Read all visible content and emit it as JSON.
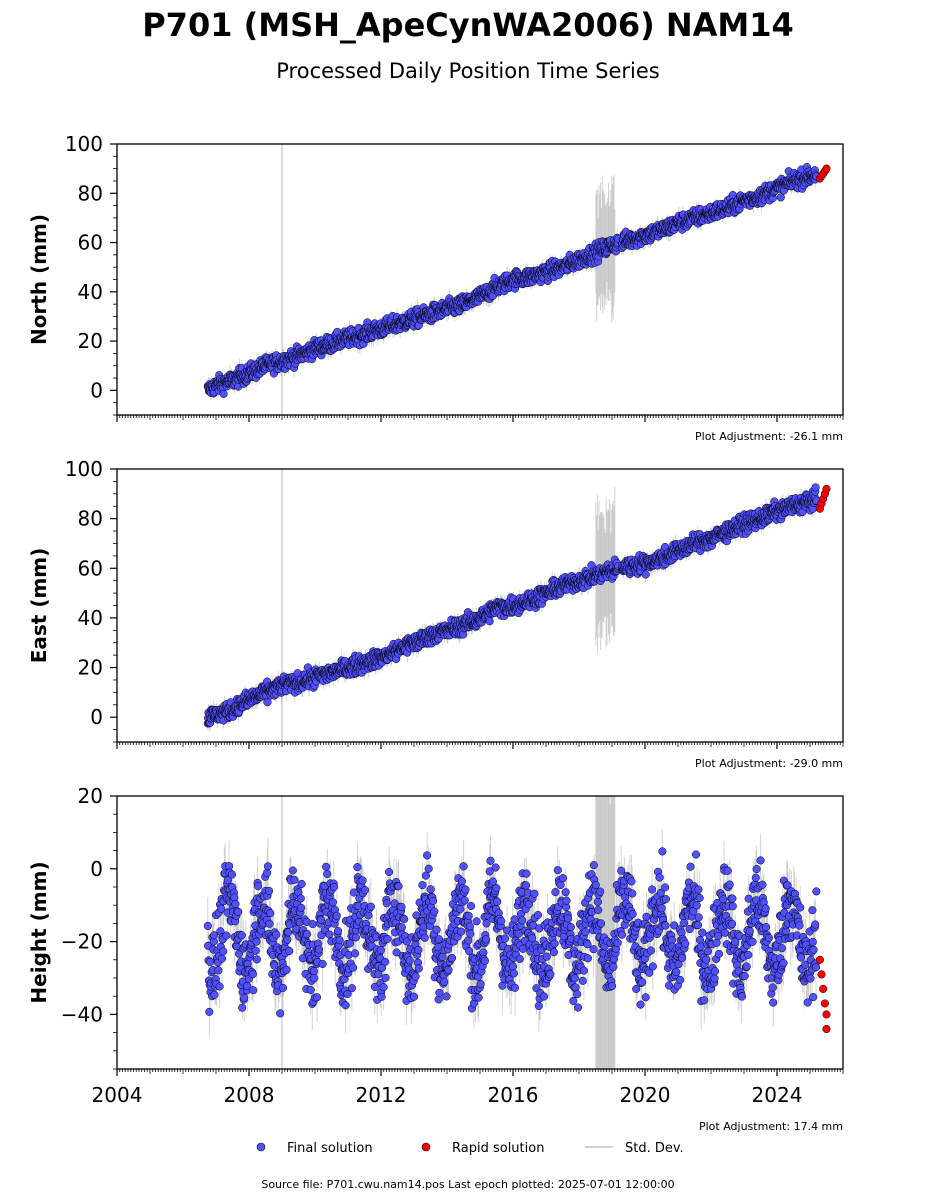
{
  "title": "P701 (MSH_ApeCynWA2006) NAM14",
  "subtitle": "Processed Daily Position Time Series",
  "footer": "Source file: P701.cwu.nam14.pos  Last epoch plotted: 2025-07-01 12:00:00",
  "legend": {
    "final": "Final solution",
    "rapid": "Rapid solution",
    "std": "Std. Dev."
  },
  "colors": {
    "final": "#5050ff",
    "rapid": "#ff0000",
    "std": "#808080",
    "marker_edge": "#000000",
    "vline": "#d0d0d0"
  },
  "chart_data": [
    {
      "type": "scatter",
      "ylabel": "North (mm)",
      "ylim": [
        -10,
        100
      ],
      "yticks": [
        0,
        20,
        40,
        60,
        80,
        100
      ],
      "xlim": [
        2004,
        2026
      ],
      "xticks": [
        2004,
        2008,
        2012,
        2016,
        2020,
        2024
      ],
      "x_tick_labels_shown": false,
      "adjustment": "Plot Adjustment: -26.1 mm",
      "vertical_line_x": 2009.0,
      "series": [
        {
          "name": "Final solution",
          "x": [
            2006.75,
            2007.0,
            2007.5,
            2008.0,
            2008.5,
            2009.0,
            2009.5,
            2010.0,
            2010.5,
            2011.0,
            2011.5,
            2012.0,
            2012.5,
            2013.0,
            2013.5,
            2014.0,
            2014.5,
            2015.0,
            2015.5,
            2016.0,
            2016.5,
            2017.0,
            2017.5,
            2018.0,
            2018.5,
            2019.0,
            2019.5,
            2020.0,
            2020.5,
            2021.0,
            2021.5,
            2022.0,
            2022.5,
            2023.0,
            2023.5,
            2024.0,
            2024.5,
            2025.0,
            2025.2
          ],
          "y": [
            0,
            2,
            4,
            7,
            10,
            12,
            14,
            17,
            19,
            21,
            23,
            25,
            27,
            29,
            31,
            33,
            35,
            38,
            42,
            45,
            46,
            48,
            50,
            53,
            56,
            59,
            61,
            63,
            65,
            68,
            70,
            72,
            74,
            77,
            79,
            82,
            85,
            87,
            88
          ],
          "spread": 3
        },
        {
          "name": "Rapid solution",
          "x": [
            2025.3,
            2025.35,
            2025.4,
            2025.45,
            2025.5
          ],
          "y": [
            86,
            87,
            88,
            89,
            90
          ]
        }
      ]
    },
    {
      "type": "scatter",
      "ylabel": "East (mm)",
      "ylim": [
        -10,
        100
      ],
      "yticks": [
        0,
        20,
        40,
        60,
        80,
        100
      ],
      "xlim": [
        2004,
        2026
      ],
      "xticks": [
        2004,
        2008,
        2012,
        2016,
        2020,
        2024
      ],
      "x_tick_labels_shown": false,
      "adjustment": "Plot Adjustment: -29.0 mm",
      "vertical_line_x": 2009.0,
      "series": [
        {
          "name": "Final solution",
          "x": [
            2006.75,
            2007.0,
            2007.5,
            2008.0,
            2008.5,
            2009.0,
            2009.5,
            2010.0,
            2010.5,
            2011.0,
            2011.5,
            2012.0,
            2012.5,
            2013.0,
            2013.5,
            2014.0,
            2014.5,
            2015.0,
            2015.5,
            2016.0,
            2016.5,
            2017.0,
            2017.5,
            2018.0,
            2018.5,
            2019.0,
            2019.5,
            2020.0,
            2020.5,
            2021.0,
            2021.5,
            2022.0,
            2022.5,
            2023.0,
            2023.5,
            2024.0,
            2024.5,
            2025.0,
            2025.2
          ],
          "y": [
            0,
            1,
            3,
            7,
            10,
            13,
            14,
            16,
            18,
            20,
            22,
            24,
            27,
            30,
            33,
            35,
            37,
            40,
            44,
            45,
            47,
            50,
            53,
            55,
            57,
            59,
            61,
            62,
            64,
            67,
            70,
            72,
            75,
            78,
            80,
            83,
            85,
            87,
            88
          ],
          "spread": 3
        },
        {
          "name": "Rapid solution",
          "x": [
            2025.3,
            2025.35,
            2025.4,
            2025.45,
            2025.5
          ],
          "y": [
            84,
            86,
            88,
            90,
            92
          ]
        }
      ]
    },
    {
      "type": "scatter",
      "ylabel": "Height (mm)",
      "ylim": [
        -55,
        20
      ],
      "yticks": [
        -40,
        -20,
        0,
        20
      ],
      "xlim": [
        2004,
        2026
      ],
      "xticks": [
        2004,
        2008,
        2012,
        2016,
        2020,
        2024
      ],
      "x_tick_labels_shown": true,
      "adjustment": "Plot Adjustment: 17.4 mm",
      "vertical_line_x": 2009.0,
      "series": [
        {
          "name": "Final solution",
          "x_start": 2006.75,
          "x_end": 2025.2,
          "mean": -18,
          "seasonal_amplitude": 10,
          "spread": 8
        },
        {
          "name": "Rapid solution",
          "x": [
            2025.3,
            2025.35,
            2025.4,
            2025.45,
            2025.5,
            2025.5
          ],
          "y": [
            -25,
            -29,
            -33,
            -37,
            -40,
            -44
          ]
        }
      ]
    }
  ]
}
